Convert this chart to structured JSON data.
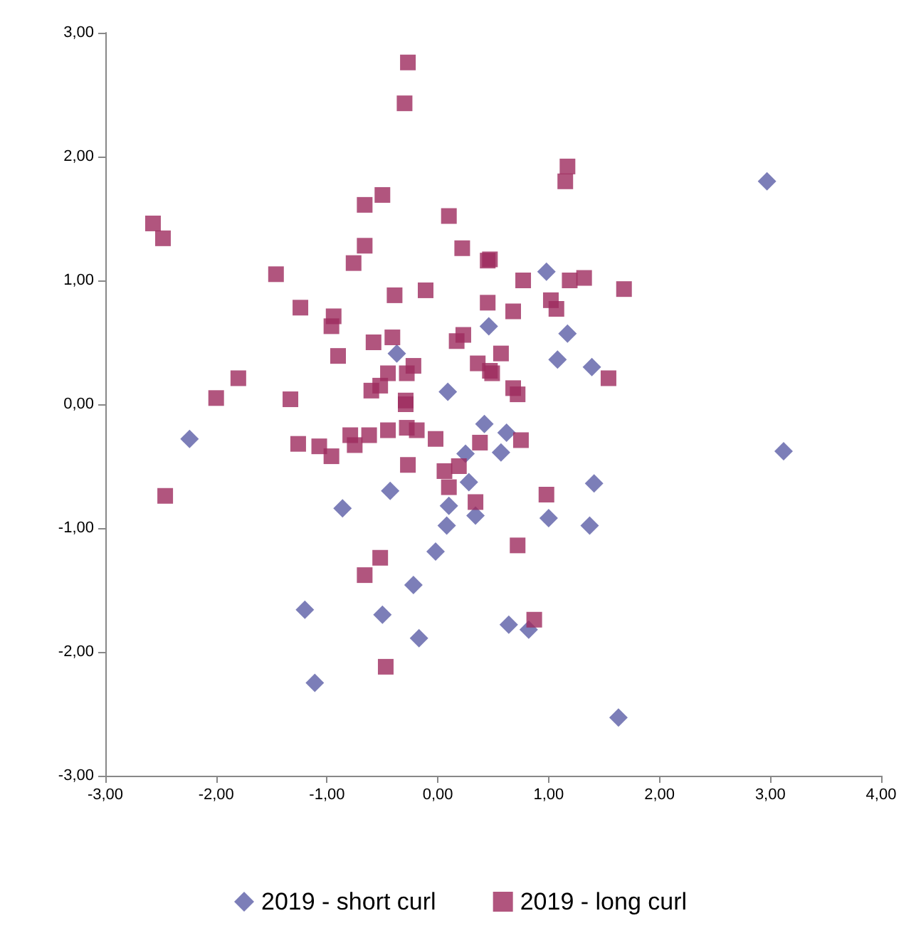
{
  "chart_data": {
    "type": "scatter",
    "legend": "bottom",
    "grid": false,
    "xlim": [
      -3,
      4
    ],
    "xticks": [
      {
        "value": -3,
        "label": "-3,00"
      },
      {
        "value": -2,
        "label": "-2,00"
      },
      {
        "value": -1,
        "label": "-1,00"
      },
      {
        "value": 0,
        "label": "0,00"
      },
      {
        "value": 1,
        "label": "1,00"
      },
      {
        "value": 2,
        "label": "2,00"
      },
      {
        "value": 3,
        "label": "3,00"
      },
      {
        "value": 4,
        "label": "4,00"
      }
    ],
    "ylim": [
      -3,
      3
    ],
    "yticks": [
      {
        "value": -3,
        "label": "-3,00"
      },
      {
        "value": -2,
        "label": "-2,00"
      },
      {
        "value": -1,
        "label": "-1,00"
      },
      {
        "value": 0,
        "label": "0,00"
      },
      {
        "value": 1,
        "label": "1,00"
      },
      {
        "value": 2,
        "label": "2,00"
      },
      {
        "value": 3,
        "label": "3,00"
      }
    ],
    "series": [
      {
        "name": "2019 - short curl",
        "color": "#5b5ea6",
        "marker": "diamond",
        "x": [
          2.97,
          0.98,
          0.46,
          1.17,
          1.08,
          1.39,
          -0.37,
          0.09,
          3.12,
          1.41,
          1.0,
          1.37,
          0.64,
          0.82,
          1.63,
          0.42,
          0.57,
          0.62,
          0.34,
          0.28,
          -2.24,
          -0.43,
          -0.86,
          0.1,
          0.08,
          -0.02,
          -0.22,
          -1.2,
          -0.5,
          -0.17,
          -1.11,
          0.25
        ],
        "values": [
          1.8,
          1.07,
          0.63,
          0.57,
          0.36,
          0.3,
          0.41,
          0.1,
          -0.38,
          -0.64,
          -0.92,
          -0.98,
          -1.78,
          -1.82,
          -2.53,
          -0.16,
          -0.39,
          -0.23,
          -0.9,
          -0.63,
          -0.28,
          -0.7,
          -0.84,
          -0.82,
          -0.98,
          -1.19,
          -1.46,
          -1.66,
          -1.7,
          -1.89,
          -2.25,
          -0.4
        ]
      },
      {
        "name": "2019 - long curl",
        "color": "#9e2a5e",
        "marker": "square",
        "x": [
          -0.27,
          -0.3,
          -2.57,
          -2.48,
          -0.66,
          -0.5,
          -0.66,
          -0.76,
          0.1,
          0.22,
          0.45,
          -1.46,
          -1.24,
          -0.94,
          -0.96,
          -0.39,
          -0.11,
          0.45,
          -0.9,
          -0.58,
          -0.41,
          0.17,
          0.23,
          0.36,
          0.47,
          -0.22,
          -0.28,
          -0.45,
          -1.8,
          -2.0,
          -1.33,
          -0.6,
          -0.52,
          -0.29,
          1.17,
          1.15,
          0.47,
          0.77,
          1.32,
          1.19,
          1.68,
          1.02,
          1.07,
          0.68,
          0.57,
          0.49,
          0.68,
          0.72,
          1.54,
          0.38,
          0.75,
          0.34,
          0.98,
          0.72,
          0.87,
          -2.46,
          -1.26,
          -1.07,
          -0.96,
          -0.79,
          -0.75,
          -0.62,
          -0.45,
          -0.29,
          -0.28,
          -0.19,
          -0.02,
          -0.27,
          0.06,
          0.19,
          0.1,
          -0.52,
          -0.66,
          -0.47
        ],
        "values": [
          2.76,
          2.43,
          1.46,
          1.34,
          1.61,
          1.69,
          1.28,
          1.14,
          1.52,
          1.26,
          1.16,
          1.05,
          0.78,
          0.71,
          0.63,
          0.88,
          0.92,
          0.82,
          0.39,
          0.5,
          0.54,
          0.51,
          0.56,
          0.33,
          0.27,
          0.31,
          0.25,
          0.25,
          0.21,
          0.05,
          0.04,
          0.11,
          0.15,
          0.03,
          1.92,
          1.8,
          1.17,
          1.0,
          1.02,
          1.0,
          0.93,
          0.84,
          0.77,
          0.75,
          0.41,
          0.25,
          0.13,
          0.08,
          0.21,
          -0.31,
          -0.29,
          -0.79,
          -0.73,
          -1.14,
          -1.74,
          -0.74,
          -0.32,
          -0.34,
          -0.42,
          -0.25,
          -0.33,
          -0.25,
          -0.21,
          0.0,
          -0.19,
          -0.21,
          -0.28,
          -0.49,
          -0.54,
          -0.5,
          -0.67,
          -1.24,
          -1.38,
          -2.12
        ]
      }
    ]
  }
}
